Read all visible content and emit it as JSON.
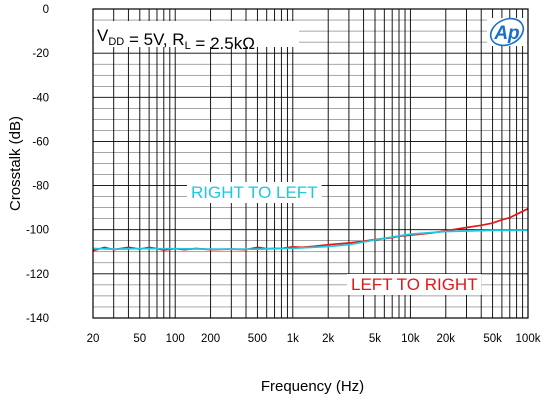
{
  "chart_data": {
    "type": "line",
    "title": "",
    "xlabel": "Frequency (Hz)",
    "ylabel": "Crosstalk (dB)",
    "x_scale": "log",
    "xlim": [
      20,
      100000
    ],
    "ylim": [
      -140,
      0
    ],
    "grid": true,
    "x_ticks": [
      20,
      50,
      100,
      200,
      500,
      1000,
      2000,
      5000,
      10000,
      20000,
      50000,
      100000
    ],
    "x_tick_labels": [
      "20",
      "50",
      "100",
      "200",
      "500",
      "1k",
      "2k",
      "5k",
      "10k",
      "20k",
      "50k",
      "100k"
    ],
    "y_ticks": [
      0,
      -20,
      -40,
      -60,
      -80,
      -100,
      -120,
      -140
    ],
    "y_tick_labels": [
      "0",
      "-20",
      "-40",
      "-60",
      "-80",
      "-100",
      "-120",
      "-140"
    ],
    "conditions_text": "V<sub>DD</sub> = 5V, R<sub>L</sub> = 2.5kΩ",
    "logo_text": "Ap",
    "annotations": [
      {
        "text": "RIGHT TO LEFT",
        "color": "#1ec8e0"
      },
      {
        "text": "LEFT TO RIGHT",
        "color": "#e01818"
      }
    ],
    "series": [
      {
        "color": "#e01818",
        "x": [
          20,
          25,
          30,
          40,
          50,
          60,
          70,
          80,
          100,
          120,
          150,
          200,
          300,
          400,
          500,
          600,
          700,
          800,
          1000,
          1200,
          1500,
          2000,
          3000,
          4000,
          5000,
          6000,
          7000,
          8000,
          10000,
          15000,
          20000,
          30000,
          40000,
          50000,
          60000,
          70000,
          80000,
          100000
        ],
        "y": [
          -109.5,
          -108,
          -109,
          -108,
          -108.8,
          -108,
          -108.6,
          -109.2,
          -108.6,
          -109,
          -108.5,
          -109,
          -108.8,
          -109,
          -108,
          -108.6,
          -108.5,
          -108.5,
          -107.8,
          -108,
          -107.5,
          -106.8,
          -106,
          -105.2,
          -104.5,
          -104,
          -103.6,
          -103,
          -102.5,
          -101.5,
          -100.5,
          -99,
          -98,
          -97,
          -95.5,
          -94.5,
          -93,
          -90.5
        ]
      },
      {
        "color": "#1ec8e0",
        "x": [
          20,
          30,
          50,
          100,
          200,
          500,
          1000,
          2000,
          3000,
          5000,
          10000,
          20000,
          50000,
          100000
        ],
        "y": [
          -108.5,
          -108.8,
          -108.6,
          -108.6,
          -108.8,
          -108.8,
          -108.4,
          -107.6,
          -106.8,
          -104.6,
          -102,
          -100.8,
          -100.3,
          -100.2
        ]
      }
    ]
  }
}
